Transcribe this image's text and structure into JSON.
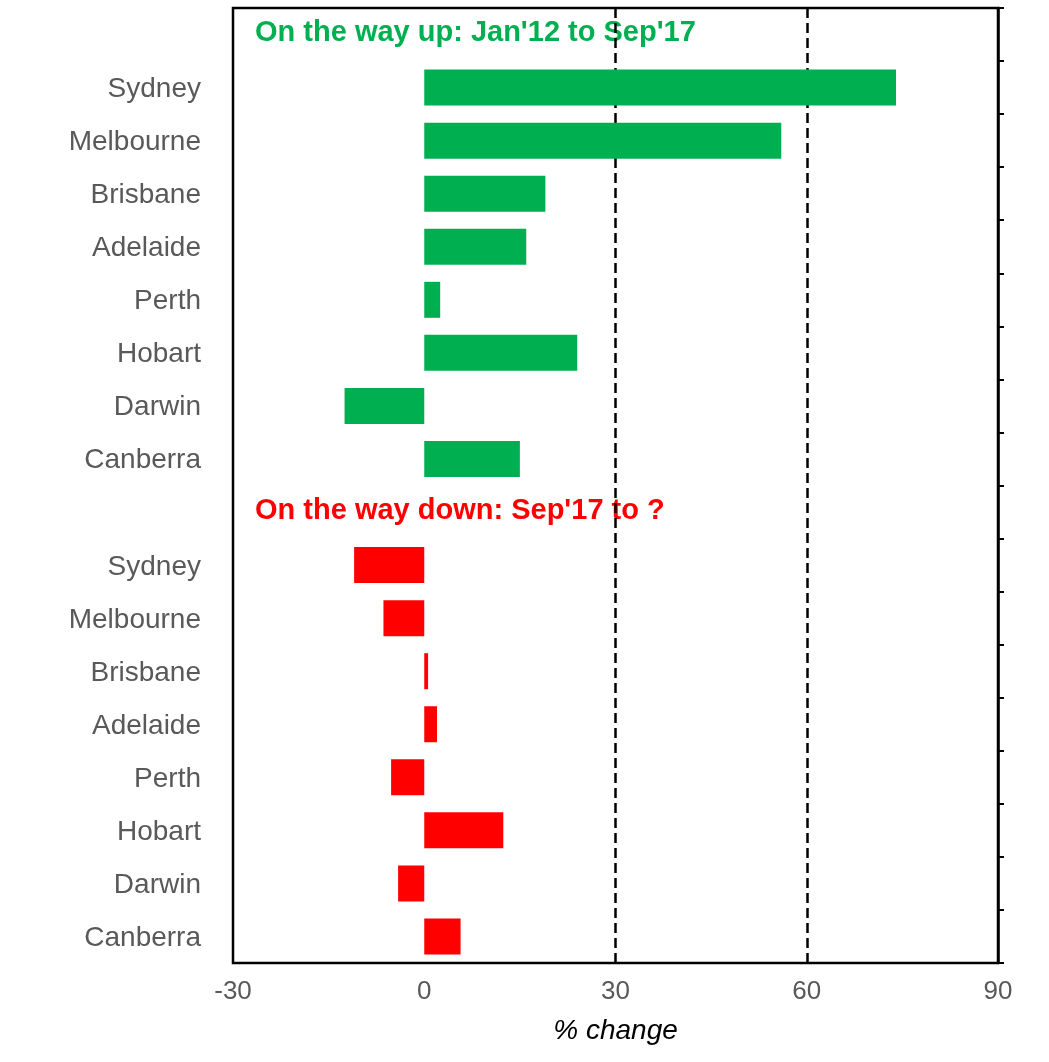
{
  "chart_data": {
    "type": "bar",
    "orientation": "horizontal",
    "xlabel": "% change",
    "categories": [
      null,
      "Sydney",
      "Melbourne",
      "Brisbane",
      "Adelaide",
      "Perth",
      "Hobart",
      "Darwin",
      "Canberra",
      null,
      "Sydney",
      "Melbourne",
      "Brisbane",
      "Adelaide",
      "Perth",
      "Hobart",
      "Darwin",
      "Canberra"
    ],
    "series": [
      {
        "name": "On the way up: Jan'12 to Sep'17",
        "color": "#00b050",
        "values": [
          null,
          74,
          56,
          19,
          16,
          2.5,
          24,
          -12.5,
          15,
          null,
          null,
          null,
          null,
          null,
          null,
          null,
          null,
          null
        ]
      },
      {
        "name": "On the way down: Sep'17 to ?",
        "color": "#ff0000",
        "values": [
          null,
          null,
          null,
          null,
          null,
          null,
          null,
          null,
          null,
          null,
          -11,
          -6.4,
          0.6,
          2,
          -5.2,
          12.4,
          -4.1,
          5.7
        ]
      }
    ],
    "xlim": [
      -30,
      90
    ],
    "xticks": [
      -30,
      0,
      30,
      60,
      90
    ],
    "ref_lines": [
      {
        "axis": "x",
        "value": 30,
        "color": "#000000",
        "line_style": "dashed"
      },
      {
        "axis": "x",
        "value": 60,
        "color": "#000000",
        "line_style": "dashed"
      }
    ],
    "grid": false,
    "legend": false
  }
}
